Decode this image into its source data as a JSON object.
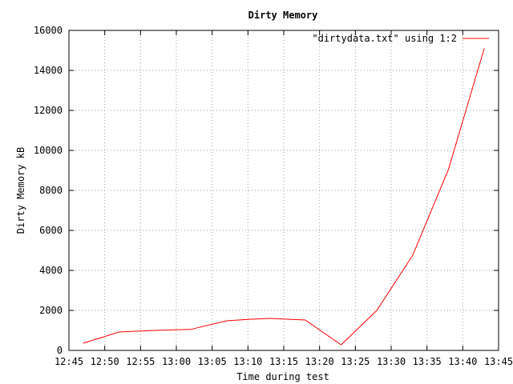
{
  "chart_data": {
    "type": "line",
    "title": "Dirty Memory",
    "xlabel": "Time during test",
    "ylabel": "Dirty Memory kB",
    "x_ticks": [
      "12:45",
      "12:50",
      "12:55",
      "13:00",
      "13:05",
      "13:10",
      "13:15",
      "13:20",
      "13:25",
      "13:30",
      "13:35",
      "13:40",
      "13:45"
    ],
    "y_ticks": [
      "0",
      "2000",
      "4000",
      "6000",
      "8000",
      "10000",
      "12000",
      "14000",
      "16000"
    ],
    "xlim_minutes_after_1245": [
      0,
      60
    ],
    "ylim": [
      0,
      16000
    ],
    "grid": true,
    "legend_placement": "top-right",
    "series": [
      {
        "name": "\"dirtydata.txt\" using 1:2",
        "color": "#ff0000",
        "x": [
          "12:47",
          "12:52",
          "12:57",
          "13:02",
          "13:07",
          "13:10",
          "13:13",
          "13:18",
          "13:23",
          "13:28",
          "13:33",
          "13:38",
          "13:43"
        ],
        "values": [
          360,
          920,
          1000,
          1050,
          1480,
          1550,
          1600,
          1520,
          280,
          2000,
          4750,
          9050,
          15100
        ]
      }
    ]
  }
}
